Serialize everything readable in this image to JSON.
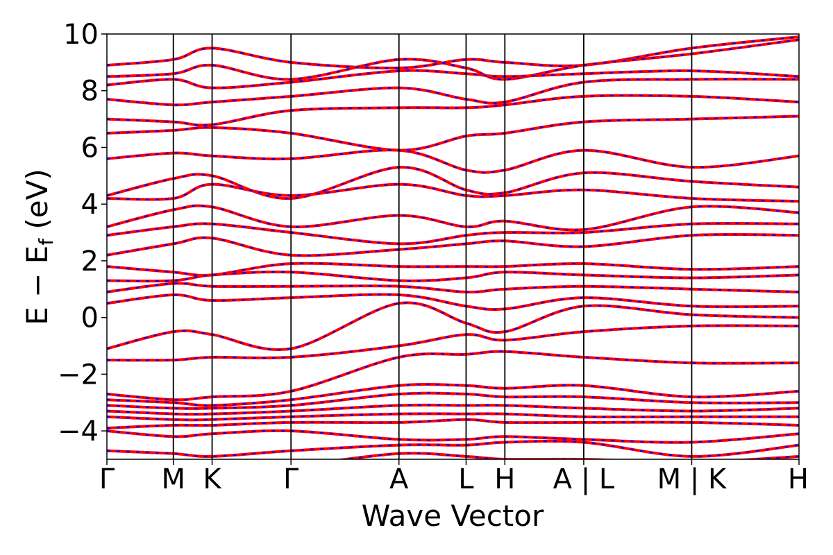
{
  "chart_data": {
    "type": "line",
    "title": "",
    "xlabel": "Wave Vector",
    "ylabel": "E − E",
    "ylabel_sub": "f",
    "ylabel_unit": " (eV)",
    "ylim": [
      -5,
      10
    ],
    "yticks": [
      10,
      8,
      6,
      4,
      2,
      0,
      -2,
      -4
    ],
    "ytick_labels": [
      "10",
      "8",
      "6",
      "4",
      "2",
      "0",
      "−2",
      "−4"
    ],
    "x_range": [
      0,
      1
    ],
    "kpath": [
      {
        "label": "Γ",
        "x": 0.0
      },
      {
        "label": "M",
        "x": 0.096
      },
      {
        "label": "K",
        "x": 0.152
      },
      {
        "label": "Γ",
        "x": 0.266
      },
      {
        "label": "A",
        "x": 0.422
      },
      {
        "label": "L",
        "x": 0.519
      },
      {
        "label": "H",
        "x": 0.575
      },
      {
        "label": "A | L",
        "x": 0.689
      },
      {
        "label": "M | K",
        "x": 0.845
      },
      {
        "label": "H",
        "x": 1.0
      }
    ],
    "series_colors": {
      "primary": "#ff0000",
      "overlay": "#0000ff"
    },
    "grid": false,
    "legend": "none",
    "bands": {
      "segment_edges": [
        0.0,
        0.096,
        0.152,
        0.266,
        0.422,
        0.519,
        0.575,
        0.689,
        0.845,
        1.0
      ],
      "nodes": [
        [
          8.9,
          9.1,
          9.5,
          9.0,
          8.8,
          9.1,
          9.0,
          8.9,
          9.5,
          9.9
        ],
        [
          8.5,
          8.6,
          8.9,
          8.4,
          9.1,
          8.8,
          8.4,
          8.9,
          9.3,
          9.8
        ],
        [
          8.2,
          8.4,
          8.1,
          8.3,
          8.7,
          8.6,
          8.5,
          8.6,
          8.7,
          8.5
        ],
        [
          7.7,
          7.5,
          7.6,
          7.8,
          8.1,
          7.7,
          7.6,
          8.3,
          8.4,
          8.4
        ],
        [
          7.0,
          6.9,
          6.8,
          7.3,
          7.4,
          7.4,
          7.5,
          7.8,
          7.8,
          7.6
        ],
        [
          6.5,
          6.6,
          6.7,
          6.5,
          5.9,
          6.4,
          6.5,
          6.9,
          7.0,
          7.1
        ],
        [
          5.6,
          5.8,
          5.7,
          5.6,
          5.9,
          5.2,
          5.2,
          5.9,
          5.3,
          5.7
        ],
        [
          4.3,
          4.9,
          5.0,
          4.2,
          5.3,
          4.5,
          4.4,
          5.1,
          4.8,
          4.6
        ],
        [
          4.2,
          4.2,
          4.7,
          4.3,
          4.7,
          4.3,
          4.3,
          4.5,
          4.2,
          4.1
        ],
        [
          3.2,
          3.8,
          3.9,
          3.2,
          3.6,
          3.2,
          3.4,
          3.1,
          3.9,
          3.7
        ],
        [
          2.9,
          3.2,
          3.3,
          3.0,
          2.6,
          2.9,
          3.0,
          3.0,
          3.3,
          3.3
        ],
        [
          2.2,
          2.6,
          2.8,
          2.2,
          2.4,
          2.6,
          2.7,
          2.5,
          2.9,
          2.9
        ],
        [
          1.8,
          1.6,
          1.5,
          1.9,
          1.8,
          1.8,
          1.8,
          1.9,
          1.7,
          1.8
        ],
        [
          1.3,
          1.3,
          1.5,
          1.6,
          1.3,
          1.4,
          1.6,
          1.5,
          1.4,
          1.5
        ],
        [
          0.9,
          1.2,
          1.1,
          1.1,
          1.1,
          0.9,
          1.0,
          1.1,
          1.0,
          0.9
        ],
        [
          0.5,
          0.8,
          0.6,
          0.7,
          0.8,
          0.4,
          0.3,
          0.7,
          0.4,
          0.4
        ],
        [
          -1.1,
          -0.5,
          -0.6,
          -1.1,
          0.5,
          -0.2,
          -0.5,
          0.4,
          0.1,
          0.0
        ],
        [
          -1.5,
          -1.5,
          -1.4,
          -1.4,
          -1.0,
          -0.6,
          -0.8,
          -0.5,
          -0.3,
          -0.3
        ],
        [
          -2.7,
          -2.9,
          -2.8,
          -2.6,
          -1.4,
          -1.3,
          -1.2,
          -1.4,
          -1.6,
          -1.6
        ],
        [
          -2.9,
          -3.0,
          -3.1,
          -2.9,
          -2.4,
          -2.4,
          -2.5,
          -2.4,
          -2.8,
          -2.6
        ],
        [
          -3.1,
          -3.2,
          -3.2,
          -3.1,
          -2.7,
          -2.7,
          -2.8,
          -2.8,
          -3.0,
          -3.0
        ],
        [
          -3.3,
          -3.4,
          -3.4,
          -3.3,
          -3.1,
          -3.1,
          -3.1,
          -3.2,
          -3.3,
          -3.2
        ],
        [
          -3.5,
          -3.6,
          -3.6,
          -3.5,
          -3.4,
          -3.4,
          -3.4,
          -3.5,
          -3.5,
          -3.5
        ],
        [
          -3.9,
          -3.8,
          -3.8,
          -3.7,
          -3.7,
          -3.6,
          -3.7,
          -3.7,
          -3.7,
          -3.8
        ],
        [
          -4.0,
          -4.2,
          -4.1,
          -4.0,
          -4.3,
          -4.3,
          -4.2,
          -4.3,
          -4.4,
          -4.1
        ],
        [
          -4.7,
          -4.8,
          -4.9,
          -4.7,
          -4.5,
          -4.5,
          -4.4,
          -4.4,
          -4.9,
          -4.5
        ],
        [
          -5.3,
          -5.2,
          -5.1,
          -5.2,
          -4.8,
          -4.9,
          -5.0,
          -5.0,
          -5.1,
          -4.9
        ]
      ]
    }
  }
}
